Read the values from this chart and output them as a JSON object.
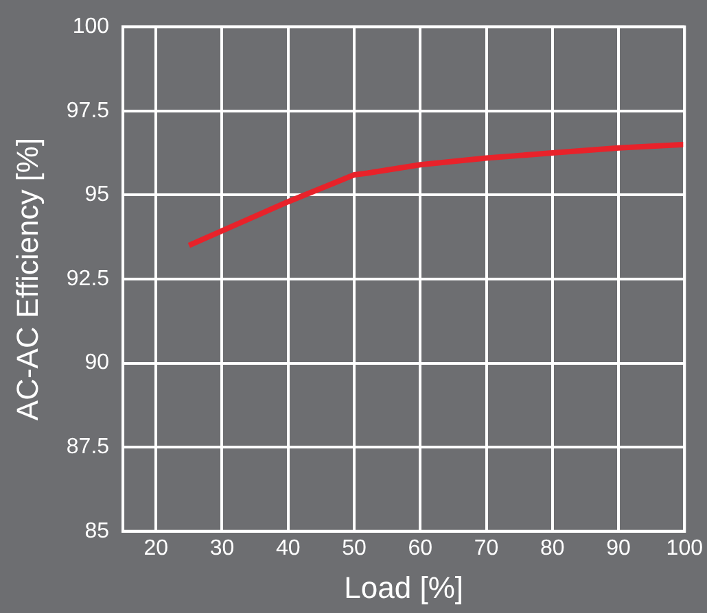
{
  "chart_data": {
    "type": "line",
    "xlabel": "Load [%]",
    "ylabel": "AC-AC Efficiency [%]",
    "x": [
      25,
      40,
      50,
      52,
      60,
      70,
      80,
      90,
      100
    ],
    "series": [
      {
        "color": "#e8222a",
        "values": [
          93.5,
          94.8,
          95.6,
          95.65,
          95.9,
          96.1,
          96.25,
          96.4,
          96.5
        ]
      }
    ],
    "xlim": [
      15,
      100
    ],
    "xticks": [
      20,
      30,
      40,
      50,
      60,
      70,
      80,
      90,
      100
    ],
    "ylim": [
      85,
      100
    ],
    "yticks": [
      85,
      87.5,
      90,
      92.5,
      95,
      97.5,
      100
    ],
    "grid": true,
    "marker": "none",
    "line_style": "solid"
  }
}
